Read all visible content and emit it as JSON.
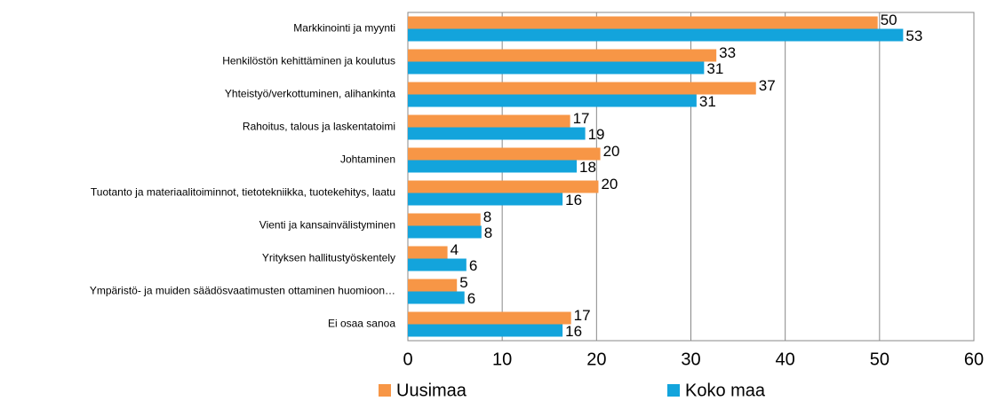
{
  "chart_data": {
    "type": "hbar",
    "categories": [
      "Markkinointi ja myynti",
      "Henkilöstön kehittäminen ja koulutus",
      "Yhteistyö/verkottuminen, alihankinta",
      "Rahoitus, talous ja laskentatoimi",
      "Johtaminen",
      "Tuotanto ja materiaalitoiminnot, tietotekniikka, tuotekehitys, laatu",
      "Vienti ja kansainvälistyminen",
      "Yrityksen hallitustyöskentely",
      "Ympäristö- ja muiden säädösvaatimusten ottaminen huomioon…",
      "Ei osaa sanoa"
    ],
    "series": [
      {
        "name": "Uusimaa",
        "color": "#f79646",
        "values": [
          49.8,
          32.7,
          36.9,
          17.2,
          20.4,
          20.2,
          7.7,
          4.2,
          5.2,
          17.3
        ],
        "value_labels": [
          "50",
          "33",
          "37",
          "17",
          "20",
          "20",
          "8",
          "4",
          "5",
          "17"
        ]
      },
      {
        "name": "Koko maa",
        "color": "#13a4dc",
        "values": [
          52.5,
          31.4,
          30.6,
          18.8,
          17.9,
          16.4,
          7.8,
          6.2,
          6.0,
          16.4
        ],
        "value_labels": [
          "53",
          "31",
          "31",
          "19",
          "18",
          "16",
          "8",
          "6",
          "6",
          "16"
        ]
      }
    ],
    "xlim": [
      0,
      60
    ],
    "xticks": [
      0,
      10,
      20,
      30,
      40,
      50,
      60
    ],
    "grid": true,
    "legend": "bottom"
  }
}
